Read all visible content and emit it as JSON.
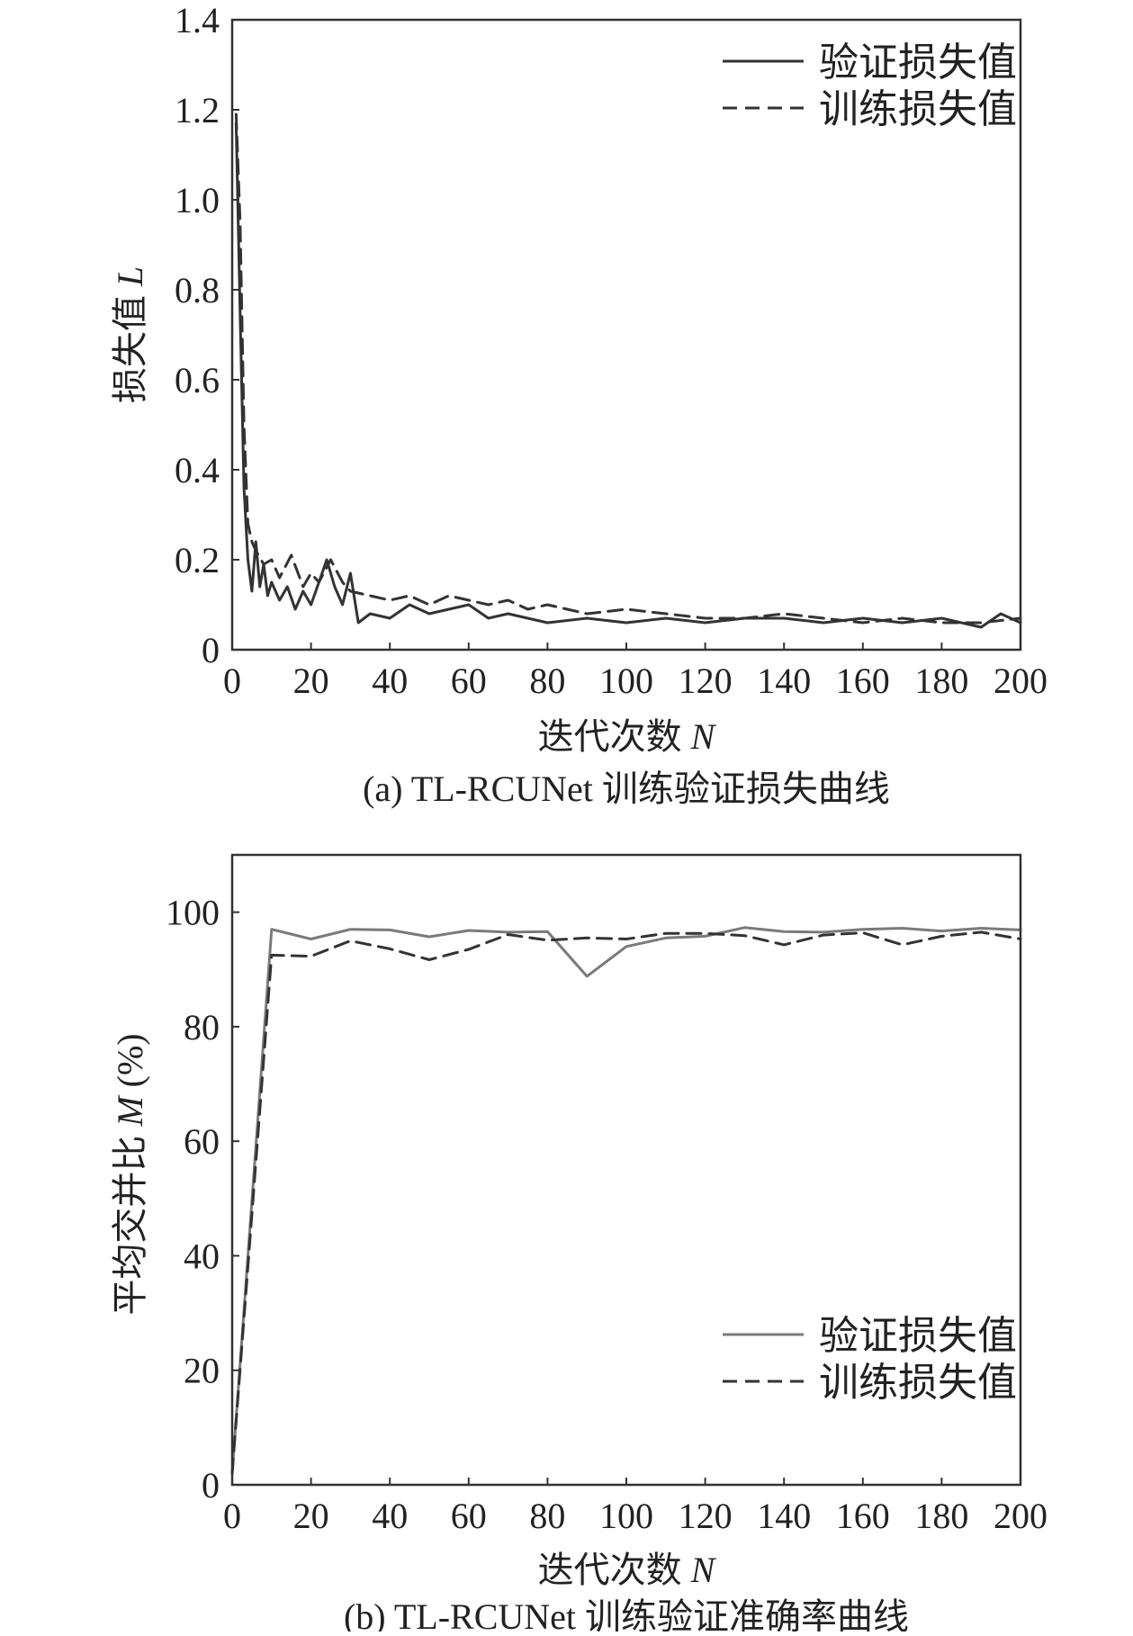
{
  "chart_data": [
    {
      "type": "line",
      "caption": "(a) TL-RCUNet 训练验证损失曲线",
      "xlabel": "迭代次数",
      "xlabel_var": "N",
      "ylabel": "损失值",
      "ylabel_var": "L",
      "xlim": [
        0,
        200
      ],
      "ylim": [
        0,
        1.4
      ],
      "x_ticks": [
        0,
        20,
        40,
        60,
        80,
        100,
        120,
        140,
        160,
        180,
        200
      ],
      "y_ticks": [
        0,
        0.2,
        0.4,
        0.6,
        0.8,
        1.0,
        1.2,
        1.4
      ],
      "y_tick_labels": [
        "0",
        "0.2",
        "0.4",
        "0.6",
        "0.8",
        "1.0",
        "1.2",
        "1.4"
      ],
      "legend_position": "top-right",
      "grid": false,
      "series": [
        {
          "name": "验证损失值",
          "style": "solid",
          "color": "#333333",
          "x": [
            1,
            2,
            3,
            4,
            5,
            6,
            7,
            8,
            9,
            10,
            12,
            14,
            16,
            18,
            20,
            22,
            24,
            26,
            28,
            30,
            32,
            35,
            40,
            45,
            50,
            55,
            60,
            65,
            70,
            75,
            80,
            90,
            100,
            110,
            120,
            130,
            140,
            150,
            160,
            170,
            180,
            190,
            195,
            200
          ],
          "y": [
            1.17,
            0.75,
            0.36,
            0.2,
            0.13,
            0.24,
            0.14,
            0.19,
            0.12,
            0.15,
            0.11,
            0.14,
            0.09,
            0.13,
            0.1,
            0.15,
            0.2,
            0.14,
            0.1,
            0.17,
            0.06,
            0.08,
            0.07,
            0.1,
            0.08,
            0.09,
            0.1,
            0.07,
            0.08,
            0.07,
            0.06,
            0.07,
            0.06,
            0.07,
            0.06,
            0.07,
            0.07,
            0.06,
            0.07,
            0.06,
            0.07,
            0.05,
            0.08,
            0.06
          ]
        },
        {
          "name": "训练损失值",
          "style": "dashed",
          "color": "#333333",
          "x": [
            1,
            2,
            3,
            4,
            5,
            6,
            8,
            10,
            12,
            15,
            18,
            20,
            22,
            25,
            28,
            30,
            35,
            40,
            45,
            50,
            55,
            60,
            65,
            70,
            75,
            80,
            90,
            100,
            110,
            120,
            130,
            140,
            150,
            160,
            170,
            180,
            190,
            200
          ],
          "y": [
            1.19,
            0.95,
            0.5,
            0.28,
            0.24,
            0.22,
            0.19,
            0.2,
            0.16,
            0.21,
            0.14,
            0.17,
            0.15,
            0.2,
            0.15,
            0.13,
            0.12,
            0.11,
            0.12,
            0.1,
            0.12,
            0.11,
            0.1,
            0.11,
            0.09,
            0.1,
            0.08,
            0.09,
            0.08,
            0.07,
            0.07,
            0.08,
            0.07,
            0.06,
            0.07,
            0.06,
            0.06,
            0.07
          ]
        }
      ]
    },
    {
      "type": "line",
      "caption": "(b) TL-RCUNet 训练验证准确率曲线",
      "xlabel": "迭代次数",
      "xlabel_var": "N",
      "ylabel": "平均交并比",
      "ylabel_var": "M",
      "ylabel_unit": "(%)",
      "xlim": [
        0,
        200
      ],
      "ylim": [
        0,
        110
      ],
      "x_ticks": [
        0,
        20,
        40,
        60,
        80,
        100,
        120,
        140,
        160,
        180,
        200
      ],
      "y_ticks": [
        0,
        20,
        40,
        60,
        80,
        100
      ],
      "y_tick_labels": [
        "0",
        "20",
        "40",
        "60",
        "80",
        "100"
      ],
      "legend_position": "bottom-right",
      "grid": false,
      "series": [
        {
          "name": "验证损失值",
          "style": "solid",
          "color": "#7a7a7a",
          "x": [
            0,
            10,
            20,
            30,
            40,
            50,
            60,
            70,
            80,
            90,
            100,
            110,
            120,
            130,
            140,
            150,
            160,
            170,
            180,
            190,
            200
          ],
          "y": [
            2,
            97,
            95.3,
            97,
            96.9,
            95.7,
            96.8,
            96.5,
            96.6,
            88.8,
            94,
            95.5,
            95.8,
            97.3,
            96.6,
            96.5,
            97,
            97.2,
            96.7,
            97.2,
            96.9
          ]
        },
        {
          "name": "训练损失值",
          "style": "dashed",
          "color": "#333333",
          "x": [
            0,
            10,
            20,
            30,
            40,
            50,
            60,
            70,
            80,
            90,
            100,
            110,
            120,
            130,
            140,
            150,
            160,
            170,
            180,
            190,
            200
          ],
          "y": [
            2,
            92.5,
            92.3,
            95,
            93.6,
            91.7,
            93.5,
            96.1,
            95.1,
            95.5,
            95.3,
            96.3,
            96.3,
            95.9,
            94.3,
            96,
            96.4,
            94.3,
            95.8,
            96.5,
            95.3
          ]
        }
      ]
    }
  ]
}
